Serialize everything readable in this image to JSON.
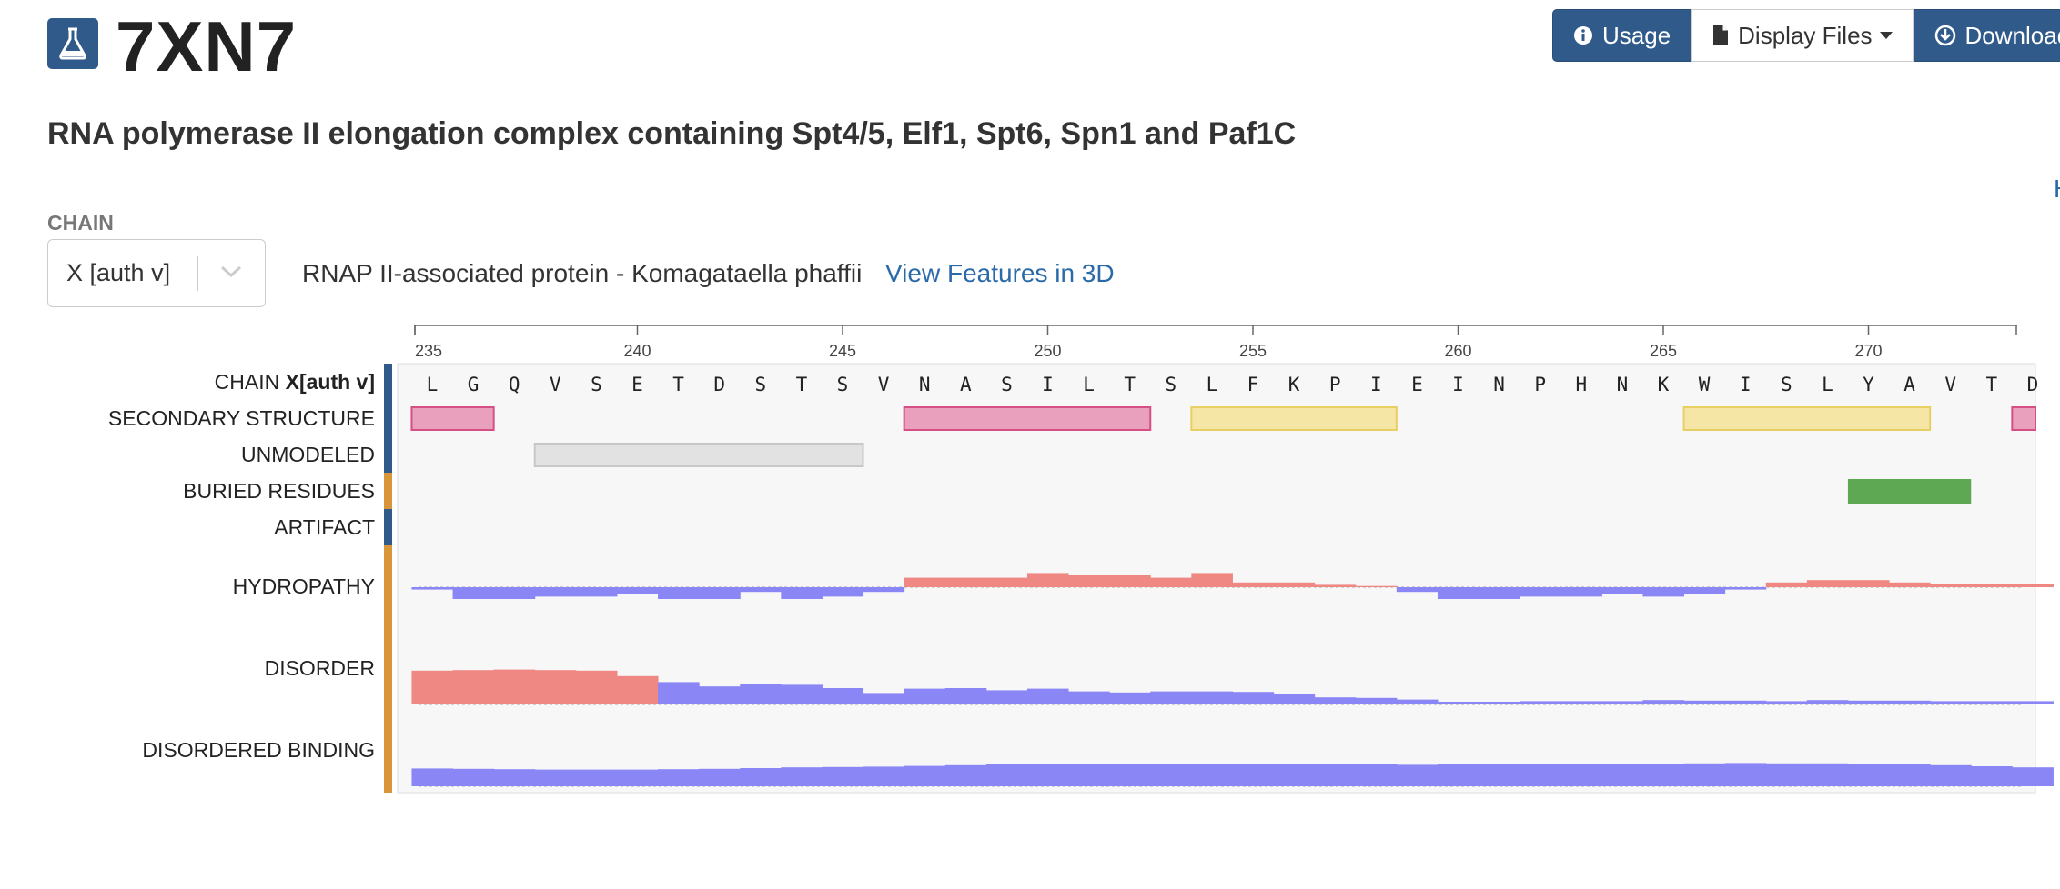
{
  "header": {
    "entry_id": "7XN7",
    "logo_icon": "flask-icon",
    "title": "RNA polymerase II elongation complex containing Spt4/5, Elf1, Spt6, Spn1 and Paf1C",
    "edge_link_text": "H"
  },
  "toolbar": {
    "usage_label": "Usage",
    "display_files_label": "Display Files",
    "download_files_label": "Download Fil",
    "colors": {
      "primary": "#2f5a8a"
    }
  },
  "chain": {
    "section_label": "CHAIN",
    "selected": "X [auth v]",
    "description": "RNAP II-associated protein - Komagataella phaffii",
    "view_3d_label": "View Features in 3D"
  },
  "chart_data": {
    "type": "feature-viewer",
    "x_ticks": [
      235,
      240,
      245,
      250,
      255,
      260,
      265,
      270
    ],
    "sequence_start": 235,
    "sequence": [
      "L",
      "G",
      "Q",
      "V",
      "S",
      "E",
      "T",
      "D",
      "S",
      "T",
      "S",
      "V",
      "N",
      "A",
      "S",
      "I",
      "L",
      "T",
      "S",
      "L",
      "F",
      "K",
      "P",
      "I",
      "E",
      "I",
      "N",
      "P",
      "H",
      "N",
      "K",
      "W",
      "I",
      "S",
      "L",
      "Y",
      "A",
      "V",
      "T",
      "D"
    ],
    "chain_track_prefix": "CHAIN ",
    "chain_track_bold": "X[auth v]",
    "track_labels": [
      "SECONDARY STRUCTURE",
      "UNMODELED",
      "BURIED RESIDUES",
      "ARTIFACT",
      "HYDROPATHY",
      "DISORDER",
      "DISORDERED BINDING"
    ],
    "track_marker_colors": [
      "#2f5a8a",
      "#2f5a8a",
      "#2f5a8a",
      "#d9953a",
      "#2f5a8a",
      "#d9953a",
      "#d9953a",
      "#d9953a"
    ],
    "secondary_structure": [
      {
        "type": "helix",
        "start": 235,
        "end": 236
      },
      {
        "type": "helix",
        "start": 247,
        "end": 252
      },
      {
        "type": "strand",
        "start": 254,
        "end": 258
      },
      {
        "type": "strand",
        "start": 266,
        "end": 271
      },
      {
        "type": "helix",
        "start": 274,
        "end": 274
      }
    ],
    "unmodeled": [
      {
        "start": 238,
        "end": 245
      }
    ],
    "buried_residues": [
      {
        "start": 270,
        "end": 272
      }
    ],
    "hydropathy": [
      -0.1,
      -0.5,
      -0.5,
      -0.4,
      -0.4,
      -0.3,
      -0.5,
      -0.5,
      -0.2,
      -0.5,
      -0.4,
      -0.2,
      0.4,
      0.4,
      0.4,
      0.6,
      0.5,
      0.5,
      0.4,
      0.6,
      0.2,
      0.2,
      0.1,
      0.05,
      -0.2,
      -0.5,
      -0.5,
      -0.4,
      -0.4,
      -0.3,
      -0.4,
      -0.3,
      -0.1,
      0.2,
      0.3,
      0.3,
      0.2,
      0.15,
      0.15,
      0.15
    ],
    "disorder": [
      0.62,
      0.63,
      0.64,
      0.63,
      0.62,
      0.52,
      0.41,
      0.33,
      0.38,
      0.36,
      0.3,
      0.21,
      0.29,
      0.3,
      0.26,
      0.29,
      0.24,
      0.22,
      0.24,
      0.24,
      0.23,
      0.2,
      0.13,
      0.12,
      0.09,
      0.05,
      0.05,
      0.06,
      0.06,
      0.06,
      0.08,
      0.07,
      0.07,
      0.06,
      0.08,
      0.07,
      0.07,
      0.06,
      0.06,
      0.06
    ],
    "disorder_threshold": 0.5,
    "disordered_binding": [
      0.49,
      0.48,
      0.47,
      0.46,
      0.46,
      0.46,
      0.47,
      0.48,
      0.5,
      0.52,
      0.53,
      0.54,
      0.56,
      0.58,
      0.6,
      0.61,
      0.62,
      0.62,
      0.62,
      0.62,
      0.61,
      0.6,
      0.6,
      0.6,
      0.59,
      0.6,
      0.62,
      0.62,
      0.62,
      0.62,
      0.62,
      0.63,
      0.64,
      0.63,
      0.63,
      0.62,
      0.6,
      0.58,
      0.55,
      0.52
    ],
    "colors": {
      "helix": "#e8a0bc",
      "helix_border": "#d64f84",
      "strand": "#f5e6a6",
      "strand_border": "#e8cf63",
      "unmodeled": "#e2e2e2",
      "unmodeled_border": "#c8c8c8",
      "buried": "#5ea854",
      "positive": "#ef8782",
      "negative": "#8a86f5",
      "plot_bg": "#f7f7f7",
      "axis": "#666666"
    }
  }
}
